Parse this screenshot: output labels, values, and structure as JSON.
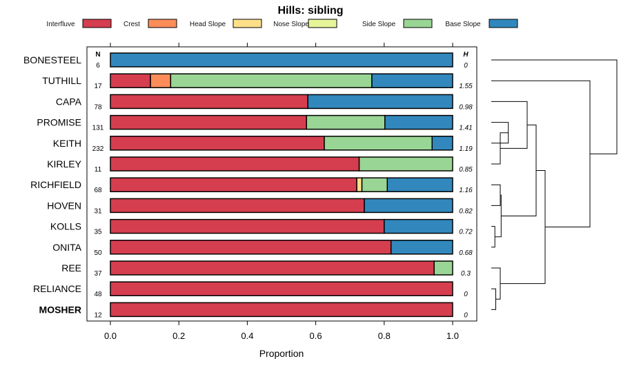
{
  "chart_data": {
    "type": "bar",
    "orientation": "horizontal-stacked",
    "title": "Hills: sibling",
    "xlabel": "Proportion",
    "xlim": [
      0,
      1
    ],
    "xticks": [
      "0.0",
      "0.2",
      "0.4",
      "0.6",
      "0.8",
      "1.0"
    ],
    "n_header": "N",
    "h_header": "H",
    "legend": [
      {
        "name": "Interfluve",
        "color": "#D53E4F"
      },
      {
        "name": "Crest",
        "color": "#FC8D59"
      },
      {
        "name": "Head Slope",
        "color": "#FEE08B"
      },
      {
        "name": "Nose Slope",
        "color": "#E6F598"
      },
      {
        "name": "Side Slope",
        "color": "#99D594"
      },
      {
        "name": "Base Slope",
        "color": "#3288BD"
      }
    ],
    "rows": [
      {
        "name": "BONESTEEL",
        "n": "6",
        "h": "0",
        "bold": false,
        "values": [
          0,
          0,
          0,
          0,
          0,
          1.0
        ]
      },
      {
        "name": "TUTHILL",
        "n": "17",
        "h": "1.55",
        "bold": false,
        "values": [
          0.117,
          0.059,
          0,
          0,
          0.588,
          0.236
        ]
      },
      {
        "name": "CAPA",
        "n": "78",
        "h": "0.98",
        "bold": false,
        "values": [
          0.577,
          0,
          0,
          0,
          0,
          0.423
        ]
      },
      {
        "name": "PROMISE",
        "n": "131",
        "h": "1.41",
        "bold": false,
        "values": [
          0.573,
          0,
          0,
          0,
          0.229,
          0.198
        ]
      },
      {
        "name": "KEITH",
        "n": "232",
        "h": "1.19",
        "bold": false,
        "values": [
          0.625,
          0,
          0,
          0,
          0.315,
          0.06
        ]
      },
      {
        "name": "KIRLEY",
        "n": "11",
        "h": "0.85",
        "bold": false,
        "values": [
          0.727,
          0,
          0,
          0,
          0.273,
          0
        ]
      },
      {
        "name": "RICHFIELD",
        "n": "68",
        "h": "1.16",
        "bold": false,
        "values": [
          0.72,
          0,
          0.015,
          0,
          0.074,
          0.191
        ]
      },
      {
        "name": "HOVEN",
        "n": "31",
        "h": "0.82",
        "bold": false,
        "values": [
          0.742,
          0,
          0,
          0,
          0,
          0.258
        ]
      },
      {
        "name": "KOLLS",
        "n": "35",
        "h": "0.72",
        "bold": false,
        "values": [
          0.8,
          0,
          0,
          0,
          0,
          0.2
        ]
      },
      {
        "name": "ONITA",
        "n": "50",
        "h": "0.68",
        "bold": false,
        "values": [
          0.82,
          0,
          0,
          0,
          0,
          0.18
        ]
      },
      {
        "name": "REE",
        "n": "37",
        "h": "0.3",
        "bold": false,
        "values": [
          0.946,
          0,
          0,
          0,
          0.054,
          0
        ]
      },
      {
        "name": "RELIANCE",
        "n": "48",
        "h": "0",
        "bold": false,
        "values": [
          1.0,
          0,
          0,
          0,
          0,
          0
        ]
      },
      {
        "name": "MOSHER",
        "n": "12",
        "h": "0",
        "bold": true,
        "values": [
          1.0,
          0,
          0,
          0,
          0,
          0
        ]
      }
    ],
    "dendrogram": {
      "type": "hierarchical-clustering",
      "merges": [
        {
          "a": "RELIANCE",
          "b": "MOSHER",
          "height": 0.05
        },
        {
          "a": "REE",
          "b": "m1",
          "height": 0.1
        },
        {
          "a": "KOLLS",
          "b": "ONITA",
          "height": 0.04
        },
        {
          "a": "RICHFIELD",
          "b": "HOVEN",
          "height": 0.1
        },
        {
          "a": "m4",
          "b": "m3",
          "height": 0.11
        },
        {
          "a": "PROMISE",
          "b": "KEITH",
          "height": 0.19
        },
        {
          "a": "m6",
          "b": "KIRLEY",
          "height": 0.1
        },
        {
          "a": "CAPA",
          "b": "m7",
          "height": 0.4
        },
        {
          "a": "m8",
          "b": "m5",
          "height": 0.5
        },
        {
          "a": "m9",
          "b": "m2",
          "height": 0.6
        },
        {
          "a": "TUTHILL",
          "b": "m10",
          "height": 1.1
        },
        {
          "a": "BONESTEEL",
          "b": "m11",
          "height": 1.4
        }
      ]
    }
  }
}
